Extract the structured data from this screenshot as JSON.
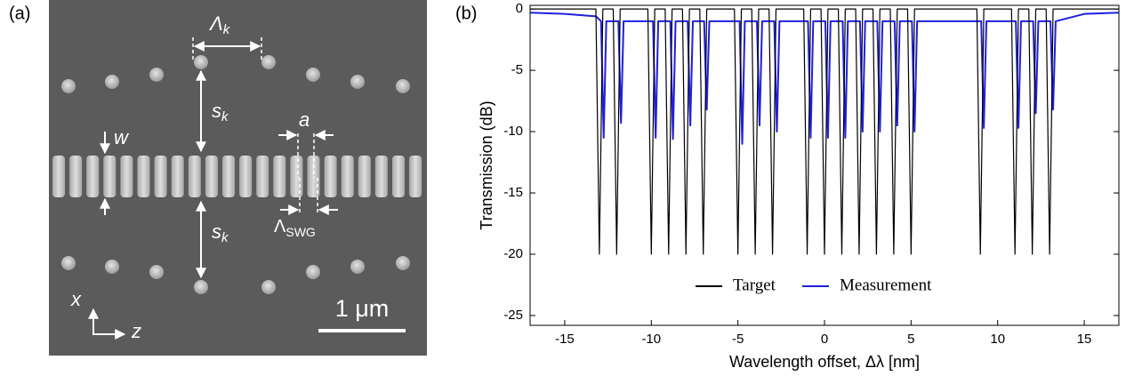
{
  "panel_a": {
    "label": "(a)",
    "annotations": {
      "period_k": {
        "base": "Λ",
        "sub": "k"
      },
      "spacing_top": {
        "base": "s",
        "sub": "k"
      },
      "spacing_bottom": {
        "base": "s",
        "sub": "k"
      },
      "width": "w",
      "gap": "a",
      "period_swg": {
        "base": "Λ",
        "sub": "SWG"
      },
      "axis_x": "x",
      "axis_z": "z",
      "scale_bar": "1 μm"
    }
  },
  "panel_b": {
    "label": "(b)"
  },
  "chart_data": {
    "type": "line",
    "x_label": "Wavelength offset, Δλ [nm]",
    "y_label": "Transmission (dB)",
    "xlim": [
      -17,
      17
    ],
    "ylim": [
      -25.8,
      0.3
    ],
    "xticks": [
      -15,
      -10,
      -5,
      0,
      5,
      10,
      15
    ],
    "yticks": [
      -25,
      -20,
      -15,
      -10,
      -5,
      0
    ],
    "legend_loc": "lower center",
    "series": [
      {
        "name": "Target",
        "color": "#000000",
        "x": [
          -17,
          -13.2,
          -13,
          -12.8,
          -12.2,
          -12,
          -11.8,
          -10.2,
          -10,
          -9.8,
          -9.2,
          -9,
          -8.8,
          -8.2,
          -8,
          -7.8,
          -7.2,
          -7,
          -6.8,
          -5.2,
          -5,
          -4.8,
          -4.2,
          -4,
          -3.8,
          -3.2,
          -3,
          -2.8,
          -1.2,
          -1,
          -0.8,
          -0.2,
          0,
          0.2,
          0.8,
          1,
          1.2,
          1.8,
          2,
          2.2,
          2.8,
          3,
          3.2,
          3.8,
          4,
          4.2,
          4.8,
          5,
          5.2,
          8.8,
          9,
          9.2,
          10.8,
          11,
          11.2,
          11.8,
          12,
          12.2,
          12.8,
          13,
          13.2,
          17
        ],
        "values": [
          0,
          0,
          -20,
          0,
          0,
          -20,
          0,
          0,
          -20,
          0,
          0,
          -20,
          0,
          0,
          -20,
          0,
          0,
          -20,
          0,
          0,
          -20,
          0,
          0,
          -20,
          0,
          0,
          -20,
          0,
          0,
          -20,
          0,
          0,
          -20,
          0,
          0,
          -20,
          0,
          0,
          -20,
          0,
          0,
          -20,
          0,
          0,
          -20,
          0,
          0,
          -20,
          0,
          0,
          -20,
          0,
          0,
          -20,
          0,
          0,
          -20,
          0,
          0,
          -20,
          0,
          0
        ]
      },
      {
        "name": "Measurement",
        "color": "#1f1fe0",
        "x": [
          -17,
          -15,
          -13.2,
          -12.9,
          -12.75,
          -12.6,
          -11.9,
          -11.75,
          -11.6,
          -9.9,
          -9.75,
          -9.6,
          -8.9,
          -8.75,
          -8.6,
          -7.9,
          -7.75,
          -7.6,
          -6.95,
          -6.8,
          -6.65,
          -4.9,
          -4.75,
          -4.6,
          -3.9,
          -3.75,
          -3.6,
          -2.9,
          -2.75,
          -2.6,
          -0.95,
          -0.8,
          -0.65,
          0.05,
          0.2,
          0.35,
          1.05,
          1.2,
          1.35,
          2.05,
          2.2,
          2.35,
          3.05,
          3.2,
          3.35,
          4.05,
          4.2,
          4.35,
          5.05,
          5.2,
          5.35,
          9.05,
          9.2,
          9.35,
          11.05,
          11.2,
          11.35,
          12.05,
          12.2,
          12.35,
          13.05,
          13.2,
          13.35,
          15,
          17
        ],
        "values": [
          -0.3,
          -0.4,
          -0.6,
          -1,
          -10.5,
          -1,
          -1,
          -9.3,
          -1,
          -1,
          -10.5,
          -1,
          -1,
          -10.6,
          -1,
          -1,
          -9.5,
          -1,
          -1,
          -8.2,
          -1,
          -1,
          -11,
          -1,
          -1,
          -9.5,
          -1,
          -1,
          -10,
          -1,
          -1,
          -10.5,
          -1,
          -1,
          -10.5,
          -1,
          -1,
          -10.5,
          -1,
          -1,
          -10,
          -1,
          -1,
          -10,
          -1,
          -1,
          -9.5,
          -1,
          -1,
          -10,
          -1,
          -1,
          -9.7,
          -1,
          -1,
          -9.7,
          -1,
          -1,
          -8.5,
          -1,
          -1,
          -8.2,
          -1,
          -0.4,
          -0.3
        ]
      }
    ]
  }
}
